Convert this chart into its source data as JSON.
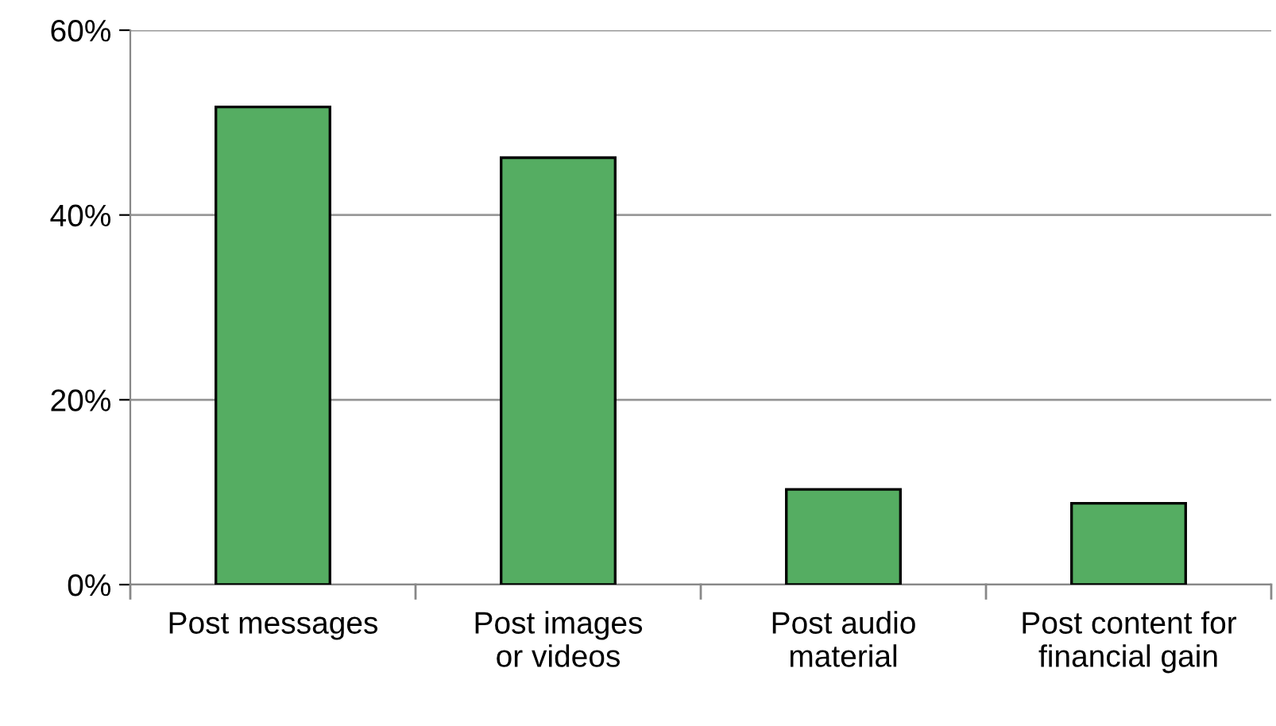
{
  "chart_data": {
    "type": "bar",
    "categories": [
      "Post messages",
      "Post images\nor videos",
      "Post audio\nmaterial",
      "Post content for\nfinancial gain"
    ],
    "values": [
      51.7,
      46.2,
      10.3,
      8.8
    ],
    "color": "#55ad62",
    "ylim": [
      0,
      60
    ],
    "yticks": [
      {
        "value": 0,
        "label": "0%"
      },
      {
        "value": 20,
        "label": "20%"
      },
      {
        "value": 40,
        "label": "40%"
      },
      {
        "value": 60,
        "label": "60%"
      }
    ],
    "grid": "y",
    "legend": false
  }
}
